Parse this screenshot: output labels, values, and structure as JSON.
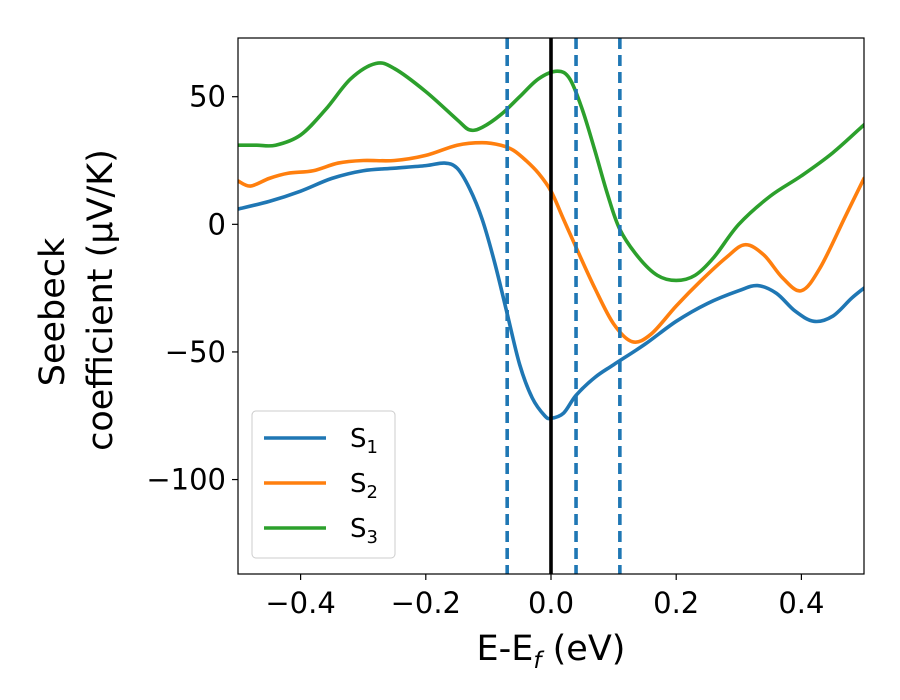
{
  "chart_data": {
    "type": "line",
    "xlabel": {
      "main": "E-E",
      "sub": "f",
      "unit": " (eV)"
    },
    "ylabel": {
      "line1": "Seebeck",
      "line2": "coefficient  (μV/K)"
    },
    "xlim": [
      -0.5,
      0.5
    ],
    "ylim": [
      -137,
      73
    ],
    "x_ticks": [
      -0.4,
      -0.2,
      0.0,
      0.2,
      0.4
    ],
    "x_tick_labels": [
      "−0.4",
      "−0.2",
      "0.0",
      "0.2",
      "0.4"
    ],
    "y_ticks": [
      50,
      0,
      -50,
      -100
    ],
    "y_tick_labels": [
      "50",
      "0",
      "−50",
      "−100"
    ],
    "grid": false,
    "legend_position": "lower-left",
    "vertical_lines": [
      {
        "x": -0.07,
        "style": "dashed",
        "color": "#1f77b4"
      },
      {
        "x": 0.0,
        "style": "solid",
        "color": "#000000"
      },
      {
        "x": 0.04,
        "style": "dashed",
        "color": "#1f77b4"
      },
      {
        "x": 0.11,
        "style": "dashed",
        "color": "#1f77b4"
      }
    ],
    "series": [
      {
        "name": "S",
        "sub": "1",
        "color": "#1f77b4",
        "points": [
          [
            -0.5,
            6
          ],
          [
            -0.45,
            9
          ],
          [
            -0.4,
            13
          ],
          [
            -0.35,
            18
          ],
          [
            -0.3,
            21
          ],
          [
            -0.25,
            22
          ],
          [
            -0.2,
            23
          ],
          [
            -0.17,
            24
          ],
          [
            -0.15,
            22
          ],
          [
            -0.13,
            14
          ],
          [
            -0.11,
            2
          ],
          [
            -0.09,
            -15
          ],
          [
            -0.07,
            -35
          ],
          [
            -0.05,
            -55
          ],
          [
            -0.03,
            -68
          ],
          [
            -0.01,
            -75
          ],
          [
            0.0,
            -76
          ],
          [
            0.02,
            -74
          ],
          [
            0.04,
            -67
          ],
          [
            0.07,
            -60
          ],
          [
            0.1,
            -55
          ],
          [
            0.15,
            -47
          ],
          [
            0.2,
            -38
          ],
          [
            0.25,
            -31
          ],
          [
            0.3,
            -26
          ],
          [
            0.33,
            -24
          ],
          [
            0.36,
            -27
          ],
          [
            0.39,
            -34
          ],
          [
            0.42,
            -38
          ],
          [
            0.45,
            -36
          ],
          [
            0.48,
            -29
          ],
          [
            0.5,
            -25
          ]
        ]
      },
      {
        "name": "S",
        "sub": "2",
        "color": "#ff7f0e",
        "points": [
          [
            -0.5,
            17
          ],
          [
            -0.48,
            15
          ],
          [
            -0.45,
            18
          ],
          [
            -0.42,
            20
          ],
          [
            -0.38,
            21
          ],
          [
            -0.34,
            24
          ],
          [
            -0.3,
            25
          ],
          [
            -0.25,
            25
          ],
          [
            -0.2,
            27
          ],
          [
            -0.15,
            31
          ],
          [
            -0.11,
            32
          ],
          [
            -0.08,
            31
          ],
          [
            -0.06,
            29
          ],
          [
            -0.04,
            25
          ],
          [
            -0.02,
            20
          ],
          [
            0.0,
            13
          ],
          [
            0.02,
            2
          ],
          [
            0.04,
            -9
          ],
          [
            0.07,
            -25
          ],
          [
            0.1,
            -39
          ],
          [
            0.13,
            -46
          ],
          [
            0.16,
            -43
          ],
          [
            0.2,
            -32
          ],
          [
            0.24,
            -22
          ],
          [
            0.28,
            -13
          ],
          [
            0.31,
            -8
          ],
          [
            0.34,
            -12
          ],
          [
            0.37,
            -21
          ],
          [
            0.4,
            -26
          ],
          [
            0.43,
            -17
          ],
          [
            0.47,
            3
          ],
          [
            0.5,
            18
          ]
        ]
      },
      {
        "name": "S",
        "sub": "3",
        "color": "#2ca02c",
        "points": [
          [
            -0.5,
            31
          ],
          [
            -0.47,
            31
          ],
          [
            -0.44,
            31
          ],
          [
            -0.4,
            35
          ],
          [
            -0.36,
            45
          ],
          [
            -0.32,
            57
          ],
          [
            -0.28,
            63
          ],
          [
            -0.25,
            61
          ],
          [
            -0.2,
            52
          ],
          [
            -0.15,
            41
          ],
          [
            -0.13,
            37
          ],
          [
            -0.11,
            38
          ],
          [
            -0.08,
            43
          ],
          [
            -0.05,
            50
          ],
          [
            -0.02,
            57
          ],
          [
            0.01,
            60
          ],
          [
            0.03,
            57
          ],
          [
            0.05,
            45
          ],
          [
            0.07,
            29
          ],
          [
            0.09,
            12
          ],
          [
            0.11,
            -2
          ],
          [
            0.14,
            -13
          ],
          [
            0.17,
            -20
          ],
          [
            0.2,
            -22
          ],
          [
            0.23,
            -20
          ],
          [
            0.26,
            -13
          ],
          [
            0.3,
            0
          ],
          [
            0.35,
            11
          ],
          [
            0.4,
            19
          ],
          [
            0.45,
            28
          ],
          [
            0.5,
            39
          ]
        ]
      }
    ]
  }
}
